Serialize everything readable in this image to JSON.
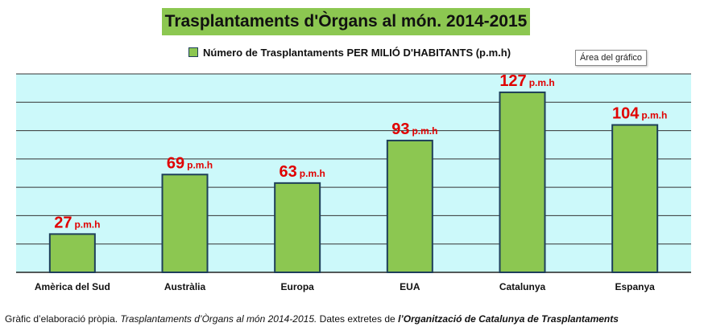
{
  "chart_data": {
    "type": "bar",
    "title": "Trasplantaments d'Òrgans al món. 2014-2015",
    "categories": [
      "Amèrica del Sud",
      "Austràlia",
      "Europa",
      "EUA",
      "Catalunya",
      "Espanya"
    ],
    "series": [
      {
        "name": "Número de Trasplantaments PER MILIÓ D'HABITANTS (p.m.h)",
        "values": [
          27,
          69,
          63,
          93,
          127,
          104
        ]
      }
    ],
    "data_labels": [
      "27",
      "69",
      "63",
      "93",
      "127",
      "104"
    ],
    "label_unit": "p.m.h",
    "ylim": [
      0,
      140
    ],
    "grid": true,
    "legend_position": "top",
    "colors": {
      "bar_fill": "#8cc751",
      "bar_stroke": "#1e3f5a",
      "plot_background": "#ccf9fa",
      "grid": "#333333",
      "value_label": "#e00000",
      "title_background": "#8cc751"
    }
  },
  "tooltip": "Área del gráfico",
  "caption": {
    "part1": "Gràfic d’elaboració pròpia. ",
    "part2": "Trasplantaments d’Òrgans al món 2014-2015.",
    "part3": "  Dates extretes de ",
    "part4": "l’Organització de Catalunya de Trasplantaments"
  }
}
